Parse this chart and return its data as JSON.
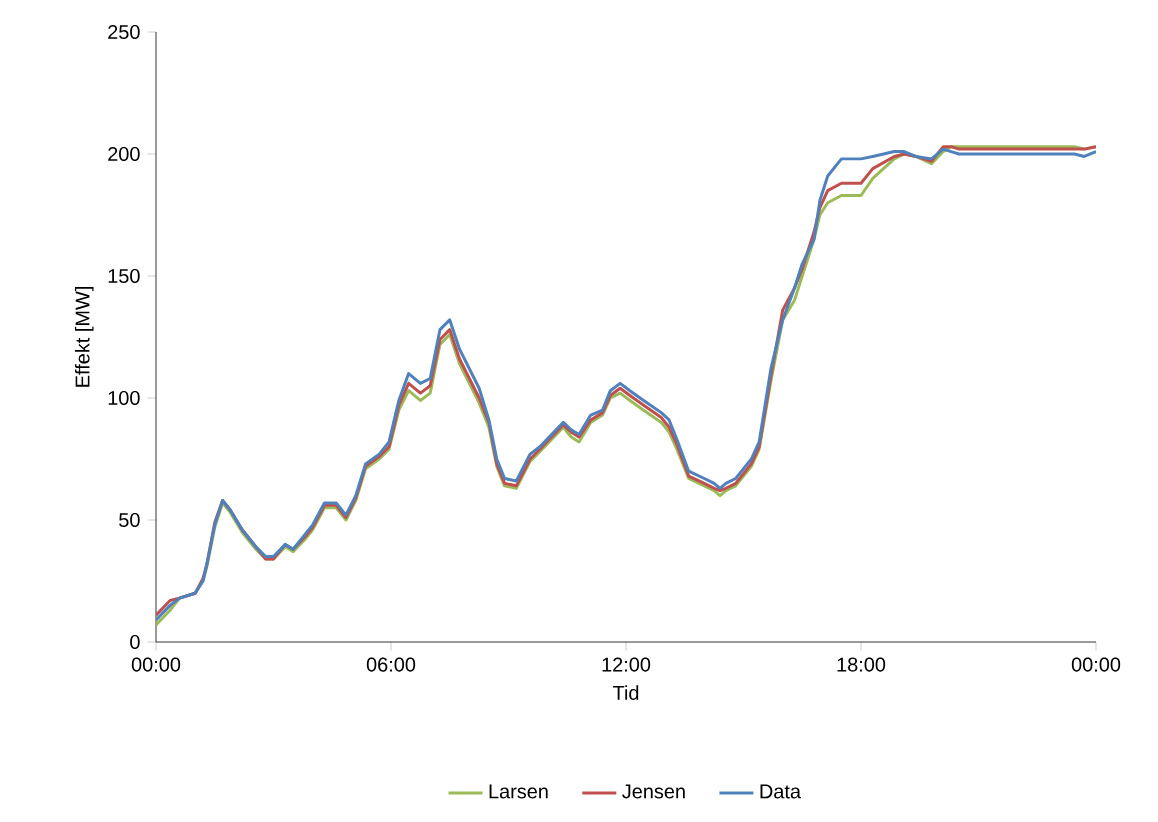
{
  "chart_data": {
    "type": "line",
    "xlabel": "Tid",
    "ylabel": "Effekt [MW]",
    "x": [
      0,
      0.36,
      0.6,
      1,
      1.2,
      1.3,
      1.5,
      1.7,
      1.9,
      2.2,
      2.55,
      2.8,
      3,
      3.3,
      3.5,
      3.8,
      4,
      4.3,
      4.6,
      4.85,
      5.1,
      5.35,
      5.7,
      5.95,
      6.2,
      6.45,
      6.75,
      7,
      7.25,
      7.5,
      7.75,
      8,
      8.25,
      8.5,
      8.7,
      8.9,
      9.2,
      9.55,
      9.8,
      10.1,
      10.4,
      10.6,
      10.8,
      11.1,
      11.4,
      11.6,
      11.85,
      12.1,
      12.45,
      12.9,
      13.1,
      13.3,
      13.6,
      14,
      14.25,
      14.4,
      14.55,
      14.8,
      15.2,
      15.4,
      15.7,
      16,
      16.3,
      16.5,
      16.8,
      16.95,
      17.15,
      17.5,
      18,
      18.3,
      18.85,
      19.1,
      19.4,
      19.8,
      20.1,
      20.3,
      20.5,
      21.55,
      22.6,
      23.45,
      23.7,
      24
    ],
    "series": [
      {
        "name": "Larsen",
        "color": "#9bbb59",
        "values": [
          7,
          13,
          18,
          20,
          25,
          31,
          47,
          57,
          53,
          45,
          38,
          34,
          34,
          39,
          37,
          42,
          46,
          55,
          55,
          50,
          58,
          71,
          75,
          79,
          95,
          103,
          99,
          102,
          122,
          126,
          114,
          106,
          98,
          88,
          72,
          64,
          63,
          74,
          78,
          83,
          88,
          84,
          82,
          90,
          93,
          100,
          102,
          99,
          95,
          90,
          86,
          79,
          67,
          64,
          62,
          60,
          62,
          64,
          72,
          79,
          107,
          132,
          140,
          150,
          165,
          175,
          180,
          183,
          183,
          190,
          198,
          200,
          199,
          196,
          201,
          203,
          203,
          203,
          203,
          203,
          202,
          203
        ]
      },
      {
        "name": "Jensen",
        "color": "#c0504d",
        "values": [
          11,
          17,
          18,
          20,
          26,
          32,
          49,
          58,
          54,
          46,
          39,
          34,
          34,
          40,
          38,
          43,
          47,
          56,
          56,
          51,
          59,
          72,
          76,
          80,
          97,
          106,
          102,
          105,
          124,
          128,
          116,
          108,
          100,
          90,
          73,
          65,
          64,
          75,
          79,
          84,
          89,
          86,
          84,
          91,
          94,
          101,
          104,
          101,
          97,
          92,
          88,
          81,
          68,
          65,
          63,
          62,
          63,
          65,
          73,
          80,
          109,
          136,
          145,
          153,
          168,
          178,
          185,
          188,
          188,
          194,
          199,
          200,
          199,
          197,
          203,
          203,
          202,
          202,
          202,
          202,
          202,
          203
        ]
      },
      {
        "name": "Data",
        "color": "#4f81bd",
        "values": [
          9,
          15,
          18,
          20,
          25,
          32,
          48,
          58,
          54,
          46,
          39,
          35,
          35,
          40,
          38,
          44,
          48,
          57,
          57,
          52,
          60,
          73,
          77,
          82,
          99,
          110,
          106,
          108,
          128,
          132,
          120,
          112,
          104,
          91,
          75,
          67,
          66,
          77,
          80,
          85,
          90,
          87,
          85,
          93,
          95,
          103,
          106,
          103,
          99,
          94,
          91,
          83,
          70,
          67,
          65,
          63,
          65,
          67,
          75,
          82,
          112,
          132,
          145,
          155,
          165,
          181,
          191,
          198,
          198,
          199,
          201,
          201,
          199,
          198,
          202,
          201,
          200,
          200,
          200,
          200,
          199,
          201
        ]
      }
    ],
    "xlim": [
      0,
      24
    ],
    "ylim": [
      0,
      250
    ],
    "xticks": [
      {
        "value": 0,
        "label": "00:00"
      },
      {
        "value": 6,
        "label": "06:00"
      },
      {
        "value": 12,
        "label": "12:00"
      },
      {
        "value": 18,
        "label": "18:00"
      },
      {
        "value": 24,
        "label": "00:00"
      }
    ],
    "yticks": [
      0,
      50,
      100,
      150,
      200,
      250
    ],
    "legend": "bottom",
    "grid": false,
    "marker": "none",
    "line_style": "solid"
  }
}
